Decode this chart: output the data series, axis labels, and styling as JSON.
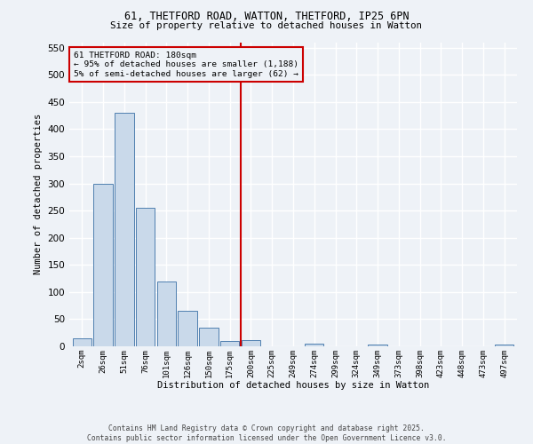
{
  "title_line1": "61, THETFORD ROAD, WATTON, THETFORD, IP25 6PN",
  "title_line2": "Size of property relative to detached houses in Watton",
  "bar_labels": [
    "2sqm",
    "26sqm",
    "51sqm",
    "76sqm",
    "101sqm",
    "126sqm",
    "150sqm",
    "175sqm",
    "200sqm",
    "225sqm",
    "249sqm",
    "274sqm",
    "299sqm",
    "324sqm",
    "349sqm",
    "373sqm",
    "398sqm",
    "423sqm",
    "448sqm",
    "473sqm",
    "497sqm"
  ],
  "bar_values": [
    15,
    300,
    430,
    255,
    120,
    65,
    35,
    10,
    12,
    0,
    0,
    5,
    0,
    0,
    3,
    0,
    0,
    0,
    0,
    0,
    4
  ],
  "bar_color": "#c9d9ea",
  "bar_edge_color": "#4f7faf",
  "vline_x": 7.5,
  "vline_color": "#cc0000",
  "annotation_text": "61 THETFORD ROAD: 180sqm\n← 95% of detached houses are smaller (1,188)\n5% of semi-detached houses are larger (62) →",
  "annotation_box_color": "#cc0000",
  "ylabel": "Number of detached properties",
  "xlabel": "Distribution of detached houses by size in Watton",
  "ylim": [
    0,
    560
  ],
  "yticks": [
    0,
    50,
    100,
    150,
    200,
    250,
    300,
    350,
    400,
    450,
    500,
    550
  ],
  "bg_color": "#eef2f7",
  "grid_color": "#ffffff",
  "footer_line1": "Contains HM Land Registry data © Crown copyright and database right 2025.",
  "footer_line2": "Contains public sector information licensed under the Open Government Licence v3.0."
}
